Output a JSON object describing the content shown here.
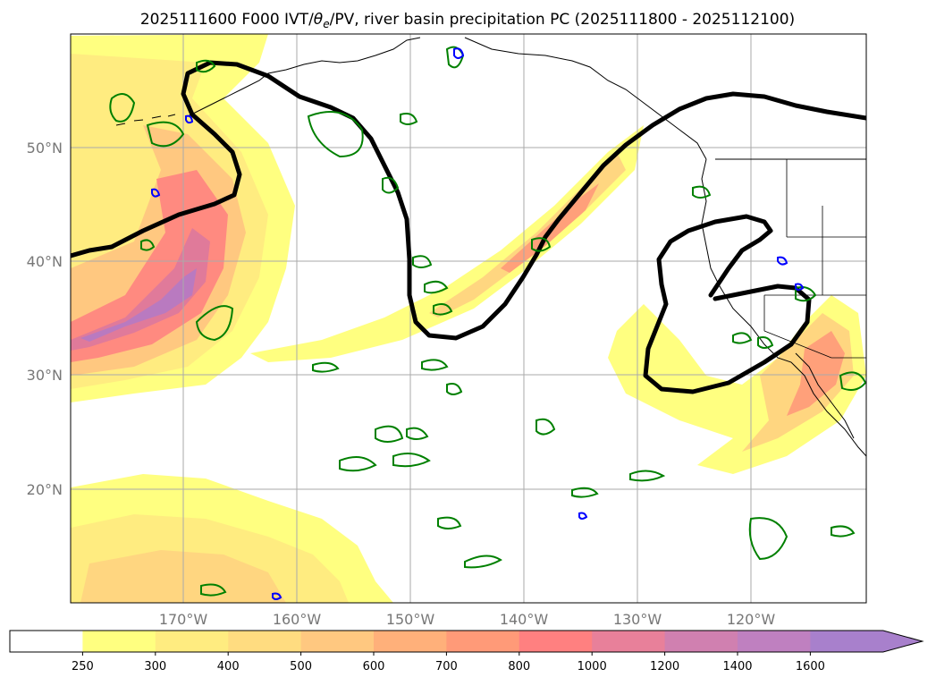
{
  "title": "2025111600 F000 IVT/θe/PV, river basin precipitation PC (2025111800 - 2025112100)",
  "title_parts": {
    "pre": "2025111600 F000 IVT/",
    "theta": "θ",
    "sub": "e",
    "post": "/PV, river basin precipitation PC (2025111800 - 2025112100)"
  },
  "map": {
    "lat_labels": [
      "50°N",
      "40°N",
      "30°N",
      "20°N"
    ],
    "lon_labels": [
      "170°W",
      "160°W",
      "150°W",
      "140°W",
      "130°W",
      "120°W"
    ],
    "extent": {
      "lon_min": -180,
      "lon_max": -110,
      "lat_min": 10,
      "lat_max": 60
    },
    "grid": true
  },
  "colorbar": {
    "ticks": [
      "250",
      "300",
      "400",
      "500",
      "600",
      "700",
      "800",
      "1000",
      "1200",
      "1400",
      "1600"
    ],
    "colors": [
      "#ffffff",
      "#ffff80",
      "#ffec80",
      "#ffdc80",
      "#ffc880",
      "#ffb07a",
      "#ff9a78",
      "#ff8080",
      "#e8809a",
      "#d080b0",
      "#bf80c0",
      "#a880cc"
    ],
    "extend": "max"
  },
  "colors": {
    "pv_contour": "#008000",
    "theta_e_contour": "#000000",
    "precip_contour": "#0000ff",
    "coastline": "#000000"
  }
}
